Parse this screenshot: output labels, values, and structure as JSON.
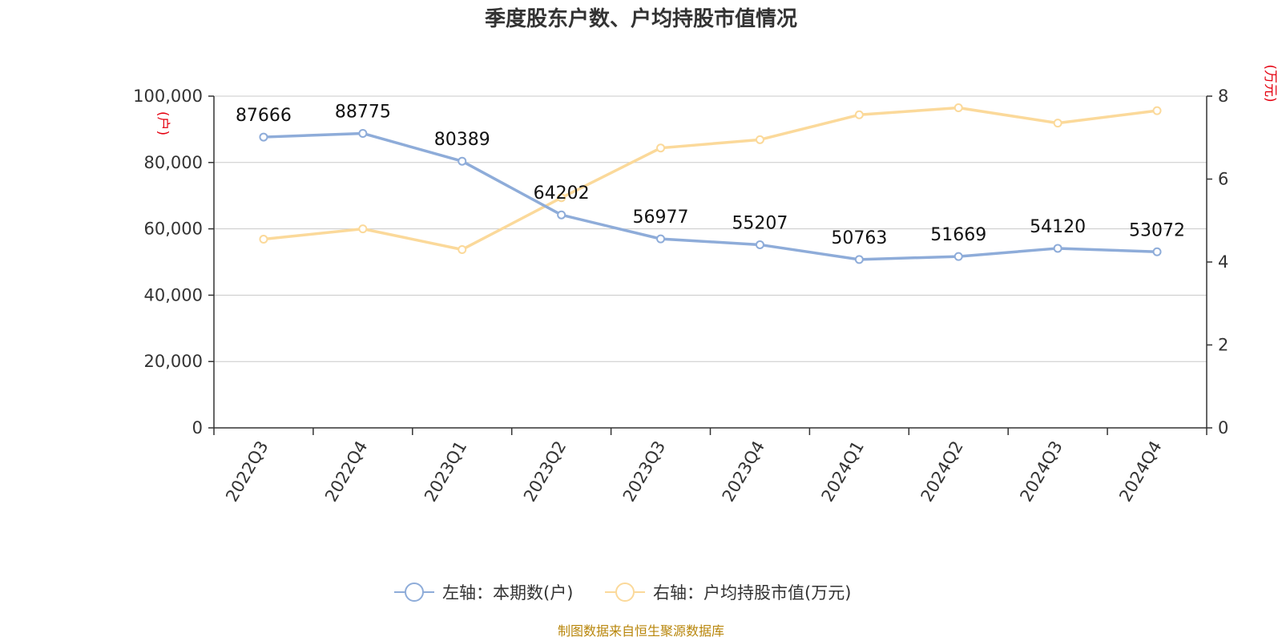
{
  "chart_data": {
    "type": "line",
    "title": "季度股东户数、户均持股市值情况",
    "categories": [
      "2022Q3",
      "2022Q4",
      "2023Q1",
      "2023Q2",
      "2023Q3",
      "2023Q4",
      "2024Q1",
      "2024Q2",
      "2024Q3",
      "2024Q4"
    ],
    "left_axis": {
      "unit": "(户)",
      "ylim": [
        0,
        100000
      ],
      "ticks": [
        0,
        20000,
        40000,
        60000,
        80000,
        100000
      ],
      "tick_labels": [
        "0",
        "20,000",
        "40,000",
        "60,000",
        "80,000",
        "100,000"
      ]
    },
    "right_axis": {
      "unit": "(万元)",
      "ylim": [
        0,
        8
      ],
      "ticks": [
        0,
        2,
        4,
        6,
        8
      ],
      "tick_labels": [
        "0",
        "2",
        "4",
        "6",
        "8"
      ]
    },
    "series": [
      {
        "name": "左轴：本期数(户)",
        "axis": "left",
        "color": "#8eacd9",
        "values": [
          87666,
          88775,
          80389,
          64202,
          56977,
          55207,
          50763,
          51669,
          54120,
          53072
        ],
        "labels": [
          "87666",
          "88775",
          "80389",
          "64202",
          "56977",
          "55207",
          "50763",
          "51669",
          "54120",
          "53072"
        ]
      },
      {
        "name": "右轴：户均持股市值(万元)",
        "axis": "right",
        "color": "#fbd99a",
        "values": [
          4.55,
          4.8,
          4.3,
          5.55,
          6.75,
          6.95,
          7.55,
          7.72,
          7.35,
          7.65
        ]
      }
    ],
    "grid": true,
    "legend_position": "bottom-center",
    "source": "制图数据来自恒生聚源数据库",
    "unit_color": "#e4000f",
    "source_color": "#b8860b"
  }
}
